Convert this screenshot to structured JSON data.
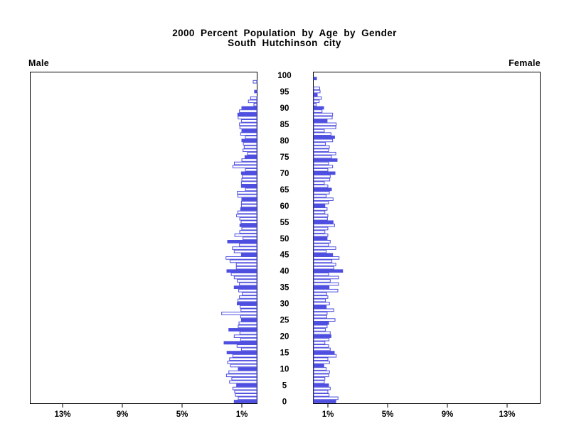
{
  "title": {
    "line1": "2000 Percent Population by Age by Gender",
    "line2": "South Hutchinson city"
  },
  "panel_labels": {
    "left": "Male",
    "right": "Female"
  },
  "axis": {
    "left_tick_labels": [
      "13%",
      "9%",
      "5%",
      "1%"
    ],
    "right_tick_labels": [
      "1%",
      "5%",
      "9%",
      "13%"
    ],
    "tick_percents": [
      13,
      9,
      5,
      1
    ],
    "age_labels": [
      0,
      5,
      10,
      15,
      20,
      25,
      30,
      35,
      40,
      45,
      50,
      55,
      60,
      65,
      70,
      75,
      80,
      85,
      90,
      95,
      100
    ]
  },
  "colors": {
    "bar_blue": "#4e4ee0",
    "bar_empty_fill": "#ffffff",
    "border": "#000000",
    "text": "#000000"
  },
  "chart_data": {
    "type": "bar",
    "variant": "population-pyramid",
    "title": "2000 Percent Population by Age by Gender",
    "subtitle": "South Hutchinson city",
    "x_unit": "percent of population per single year of age",
    "x_ticks_each_side": [
      1,
      5,
      9,
      13
    ],
    "x_max_each_side": 15.2,
    "age_min": 0,
    "age_max": 100,
    "grid": false,
    "series": [
      {
        "name": "Male",
        "side": "left",
        "values": [
          1.51,
          1.24,
          1.43,
          1.48,
          1.6,
          1.35,
          1.82,
          1.67,
          2.03,
          1.87,
          1.24,
          1.76,
          1.95,
          1.82,
          1.6,
          1.99,
          1.03,
          1.32,
          2.19,
          1.08,
          1.51,
          1.13,
          1.87,
          1.24,
          1.19,
          1.03,
          1.08,
          2.35,
          1.06,
          1.11,
          1.31,
          1.26,
          1.16,
          0.97,
          1.21,
          1.51,
          1.16,
          1.31,
          1.51,
          1.71,
          2.0,
          1.37,
          1.37,
          1.79,
          2.06,
          1.03,
          1.51,
          1.63,
          1.16,
          1.95,
          0.92,
          1.47,
          1.14,
          1.0,
          1.13,
          1.05,
          1.14,
          1.35,
          1.27,
          1.08,
          1.03,
          1.03,
          1.0,
          1.27,
          1.3,
          0.76,
          1.03,
          1.03,
          1.0,
          0.97,
          1.03,
          0.76,
          1.6,
          1.5,
          1.0,
          0.79,
          0.62,
          0.92,
          0.84,
          0.9,
          1.0,
          0.76,
          1.08,
          1.0,
          1.13,
          1.16,
          1.03,
          1.25,
          1.27,
          1.16,
          1.0,
          0.19,
          0.56,
          0.41,
          0.0,
          0.15,
          0.0,
          0.0,
          0.24,
          0.0,
          0.0
        ],
        "filled_ages": [
          0,
          5,
          10,
          15,
          18,
          22,
          25,
          30,
          35,
          40,
          45,
          49,
          54,
          59,
          62,
          66,
          70,
          75,
          80,
          83,
          88,
          90,
          95
        ]
      },
      {
        "name": "Female",
        "side": "right",
        "values": [
          1.48,
          1.63,
          1.03,
          0.95,
          1.11,
          1.0,
          0.71,
          0.75,
          1.0,
          1.06,
          0.84,
          0.68,
          1.06,
          0.95,
          1.51,
          1.38,
          1.11,
          1.0,
          0.75,
          1.03,
          1.16,
          1.11,
          0.79,
          0.9,
          1.0,
          1.43,
          0.87,
          0.9,
          1.35,
          0.84,
          1.06,
          0.79,
          0.95,
          0.87,
          1.62,
          1.03,
          1.67,
          1.11,
          1.67,
          1.0,
          1.94,
          1.35,
          1.48,
          1.22,
          1.7,
          1.27,
          0.84,
          1.48,
          1.0,
          1.11,
          0.9,
          0.95,
          0.75,
          0.95,
          1.4,
          1.3,
          0.92,
          0.95,
          0.75,
          0.9,
          0.75,
          1.0,
          1.3,
          0.83,
          1.05,
          1.19,
          0.95,
          0.71,
          1.08,
          1.11,
          1.43,
          0.95,
          1.27,
          1.0,
          1.57,
          1.19,
          1.48,
          1.0,
          1.05,
          0.79,
          1.27,
          1.4,
          1.16,
          0.71,
          1.48,
          1.51,
          0.9,
          1.24,
          1.27,
          0.56,
          0.67,
          0.16,
          0.37,
          0.52,
          0.24,
          0.43,
          0.4,
          0.0,
          0.0,
          0.19,
          0.0
        ],
        "filled_ages": [
          0,
          5,
          11,
          15,
          20,
          24,
          29,
          35,
          40,
          45,
          50,
          55,
          60,
          65,
          70,
          74,
          81,
          86,
          90,
          94,
          99
        ]
      }
    ]
  }
}
